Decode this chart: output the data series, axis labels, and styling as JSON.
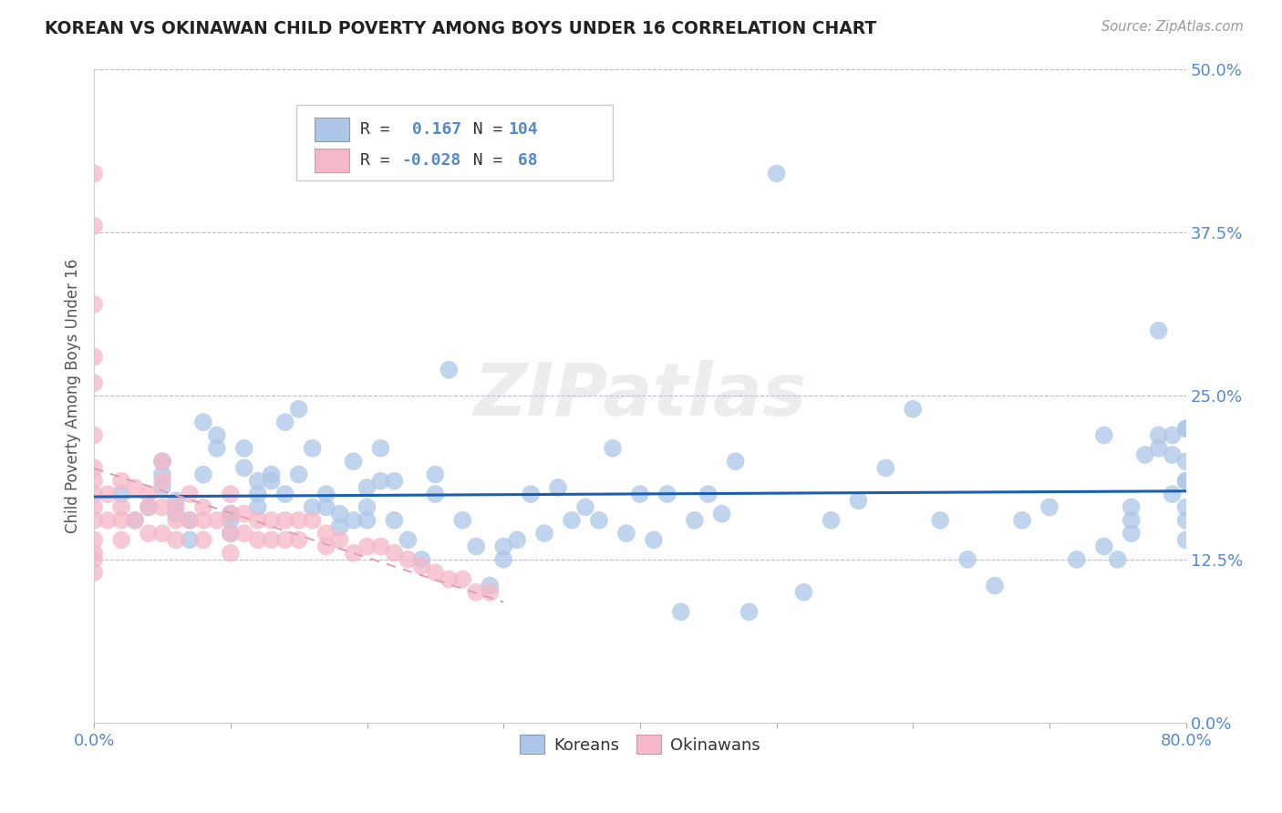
{
  "title": "KOREAN VS OKINAWAN CHILD POVERTY AMONG BOYS UNDER 16 CORRELATION CHART",
  "source": "Source: ZipAtlas.com",
  "ylabel": "Child Poverty Among Boys Under 16",
  "xlim": [
    0,
    0.8
  ],
  "ylim": [
    0,
    0.5
  ],
  "xticks": [
    0.0,
    0.1,
    0.2,
    0.3,
    0.4,
    0.5,
    0.6,
    0.7,
    0.8
  ],
  "yticks": [
    0.0,
    0.125,
    0.25,
    0.375,
    0.5
  ],
  "x_label_only": [
    0.0,
    0.8
  ],
  "xticklabels_show": [
    "0.0%",
    "80.0%"
  ],
  "yticklabels": [
    "0.0%",
    "12.5%",
    "25.0%",
    "37.5%",
    "50.0%"
  ],
  "korean_R": 0.167,
  "korean_N": 104,
  "okinawan_R": -0.028,
  "okinawan_N": 68,
  "korean_color": "#adc6e8",
  "okinawan_color": "#f5b8c8",
  "korean_line_color": "#1a5fb0",
  "okinawan_line_color": "#e0a0b8",
  "tick_label_color": "#5588cc",
  "background_color": "#ffffff",
  "watermark": "ZIPatlas",
  "legend_labels": [
    "Koreans",
    "Okinawans"
  ],
  "korean_x": [
    0.02,
    0.03,
    0.04,
    0.05,
    0.05,
    0.05,
    0.06,
    0.06,
    0.07,
    0.07,
    0.08,
    0.08,
    0.09,
    0.09,
    0.1,
    0.1,
    0.1,
    0.11,
    0.11,
    0.12,
    0.12,
    0.12,
    0.13,
    0.13,
    0.14,
    0.14,
    0.15,
    0.15,
    0.16,
    0.16,
    0.17,
    0.17,
    0.18,
    0.18,
    0.19,
    0.19,
    0.2,
    0.2,
    0.2,
    0.21,
    0.21,
    0.22,
    0.22,
    0.23,
    0.24,
    0.25,
    0.25,
    0.26,
    0.27,
    0.28,
    0.29,
    0.3,
    0.3,
    0.31,
    0.32,
    0.33,
    0.34,
    0.35,
    0.36,
    0.37,
    0.38,
    0.39,
    0.4,
    0.41,
    0.42,
    0.43,
    0.44,
    0.45,
    0.46,
    0.47,
    0.48,
    0.5,
    0.52,
    0.54,
    0.56,
    0.58,
    0.6,
    0.62,
    0.64,
    0.66,
    0.68,
    0.7,
    0.72,
    0.74,
    0.74,
    0.75,
    0.76,
    0.76,
    0.76,
    0.77,
    0.78,
    0.78,
    0.78,
    0.79,
    0.79,
    0.79,
    0.8,
    0.8,
    0.8,
    0.8,
    0.8,
    0.8,
    0.8,
    0.8
  ],
  "korean_y": [
    0.175,
    0.155,
    0.165,
    0.18,
    0.19,
    0.2,
    0.17,
    0.16,
    0.155,
    0.14,
    0.19,
    0.23,
    0.21,
    0.22,
    0.145,
    0.155,
    0.16,
    0.195,
    0.21,
    0.185,
    0.165,
    0.175,
    0.185,
    0.19,
    0.175,
    0.23,
    0.19,
    0.24,
    0.165,
    0.21,
    0.165,
    0.175,
    0.16,
    0.15,
    0.2,
    0.155,
    0.155,
    0.165,
    0.18,
    0.185,
    0.21,
    0.155,
    0.185,
    0.14,
    0.125,
    0.175,
    0.19,
    0.27,
    0.155,
    0.135,
    0.105,
    0.125,
    0.135,
    0.14,
    0.175,
    0.145,
    0.18,
    0.155,
    0.165,
    0.155,
    0.21,
    0.145,
    0.175,
    0.14,
    0.175,
    0.085,
    0.155,
    0.175,
    0.16,
    0.2,
    0.085,
    0.42,
    0.1,
    0.155,
    0.17,
    0.195,
    0.24,
    0.155,
    0.125,
    0.105,
    0.155,
    0.165,
    0.125,
    0.22,
    0.135,
    0.125,
    0.145,
    0.155,
    0.165,
    0.205,
    0.21,
    0.22,
    0.3,
    0.22,
    0.205,
    0.175,
    0.185,
    0.225,
    0.225,
    0.2,
    0.185,
    0.165,
    0.155,
    0.14
  ],
  "okinawan_x": [
    0.0,
    0.0,
    0.0,
    0.0,
    0.0,
    0.0,
    0.0,
    0.0,
    0.0,
    0.0,
    0.0,
    0.0,
    0.0,
    0.0,
    0.0,
    0.01,
    0.01,
    0.02,
    0.02,
    0.02,
    0.02,
    0.03,
    0.03,
    0.04,
    0.04,
    0.04,
    0.05,
    0.05,
    0.05,
    0.05,
    0.06,
    0.06,
    0.06,
    0.07,
    0.07,
    0.08,
    0.08,
    0.08,
    0.09,
    0.1,
    0.1,
    0.1,
    0.1,
    0.11,
    0.11,
    0.12,
    0.12,
    0.13,
    0.13,
    0.14,
    0.14,
    0.15,
    0.15,
    0.16,
    0.17,
    0.17,
    0.18,
    0.19,
    0.2,
    0.21,
    0.22,
    0.23,
    0.24,
    0.25,
    0.26,
    0.27,
    0.28,
    0.29
  ],
  "okinawan_y": [
    0.42,
    0.38,
    0.32,
    0.28,
    0.26,
    0.22,
    0.195,
    0.185,
    0.175,
    0.165,
    0.155,
    0.14,
    0.13,
    0.125,
    0.115,
    0.175,
    0.155,
    0.185,
    0.165,
    0.155,
    0.14,
    0.18,
    0.155,
    0.175,
    0.165,
    0.145,
    0.2,
    0.185,
    0.165,
    0.145,
    0.165,
    0.155,
    0.14,
    0.175,
    0.155,
    0.165,
    0.155,
    0.14,
    0.155,
    0.175,
    0.16,
    0.145,
    0.13,
    0.16,
    0.145,
    0.155,
    0.14,
    0.155,
    0.14,
    0.155,
    0.14,
    0.155,
    0.14,
    0.155,
    0.145,
    0.135,
    0.14,
    0.13,
    0.135,
    0.135,
    0.13,
    0.125,
    0.12,
    0.115,
    0.11,
    0.11,
    0.1,
    0.1
  ]
}
